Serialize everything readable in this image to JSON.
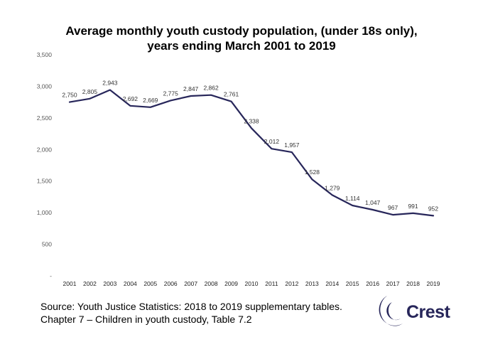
{
  "chart_data": {
    "type": "line",
    "title_line1": "Average monthly youth custody population, (under 18s only),",
    "title_line2": "years ending March 2001 to 2019",
    "xlabel": "",
    "ylabel": "",
    "categories": [
      "2001",
      "2002",
      "2003",
      "2004",
      "2005",
      "2006",
      "2007",
      "2008",
      "2009",
      "2010",
      "2011",
      "2012",
      "2013",
      "2014",
      "2015",
      "2016",
      "2017",
      "2018",
      "2019"
    ],
    "series": [
      {
        "values": [
          2750,
          2805,
          2943,
          2692,
          2669,
          2775,
          2847,
          2862,
          2761,
          2338,
          2012,
          1957,
          1528,
          1279,
          1114,
          1047,
          967,
          991,
          952
        ],
        "labels": [
          "2,750",
          "2,805",
          "2,943",
          "2,692",
          "2,669",
          "2,775",
          "2,847",
          "2,862",
          "2,761",
          "2,338",
          "2,012",
          "1,957",
          "1,528",
          "1,279",
          "1,114",
          "1,047",
          "967",
          "991",
          "952"
        ]
      }
    ],
    "ylim": [
      0,
      3500
    ],
    "yticks": [
      0,
      500,
      1000,
      1500,
      2000,
      2500,
      3000,
      3500
    ],
    "ytick_labels": [
      "-",
      "500",
      "1,000",
      "1,500",
      "2,000",
      "2,500",
      "3,000",
      "3,500"
    ],
    "grid": false,
    "line_color": "#27265a"
  },
  "source": {
    "line1": "Source: Youth Justice Statistics: 2018 to 2019 supplementary tables.",
    "line2": "Chapter 7 – Children in youth custody, Table 7.2"
  },
  "logo": {
    "text": "Crest",
    "color": "#27265a"
  }
}
